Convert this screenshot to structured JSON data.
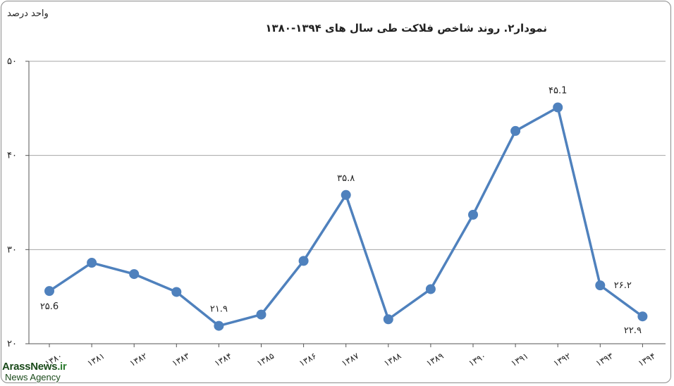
{
  "chart_data": {
    "type": "line",
    "title": "نمودار۲. روند شاخص فلاکت طی سال های ۱۳۹۴-۱۳۸۰",
    "ylabel": "واحد درصد",
    "xlabel": "",
    "ylim": [
      20,
      50
    ],
    "yticks": [
      "۲۰",
      "۳۰",
      "۴۰",
      "۵۰"
    ],
    "ytick_values": [
      20,
      30,
      40,
      50
    ],
    "categories": [
      "۱۳۸۰",
      "۱۳۸۱",
      "۱۳۸۲",
      "۱۳۸۳",
      "۱۳۸۴",
      "۱۳۸۵",
      "۱۳۸۶",
      "۱۳۸۷",
      "۱۳۸۸",
      "۱۳۸۹",
      "۱۳۹۰",
      "۱۳۹۱",
      "۱۳۹۲",
      "۱۳۹۳",
      "۱۳۹۴"
    ],
    "values": [
      25.6,
      28.6,
      27.4,
      25.5,
      21.9,
      23.1,
      28.8,
      35.8,
      22.6,
      25.8,
      33.7,
      42.6,
      45.1,
      26.2,
      22.9
    ],
    "data_labels": [
      {
        "index": 0,
        "text": "۲۵.6",
        "pos": "below"
      },
      {
        "index": 4,
        "text": "۲۱.۹",
        "pos": "above"
      },
      {
        "index": 7,
        "text": "۳۵.۸",
        "pos": "above"
      },
      {
        "index": 12,
        "text": "۴۵.1",
        "pos": "above"
      },
      {
        "index": 13,
        "text": "۲۶.۲",
        "pos": "right"
      },
      {
        "index": 14,
        "text": "۲۲.۹",
        "pos": "below-left"
      }
    ],
    "grid": true,
    "line_color": "#4f81bd",
    "gridline_color": "#a6a6a6"
  },
  "watermark": {
    "line1_main": "ArassNews",
    "line1_suffix": ".ir",
    "line2": "News Agency"
  }
}
